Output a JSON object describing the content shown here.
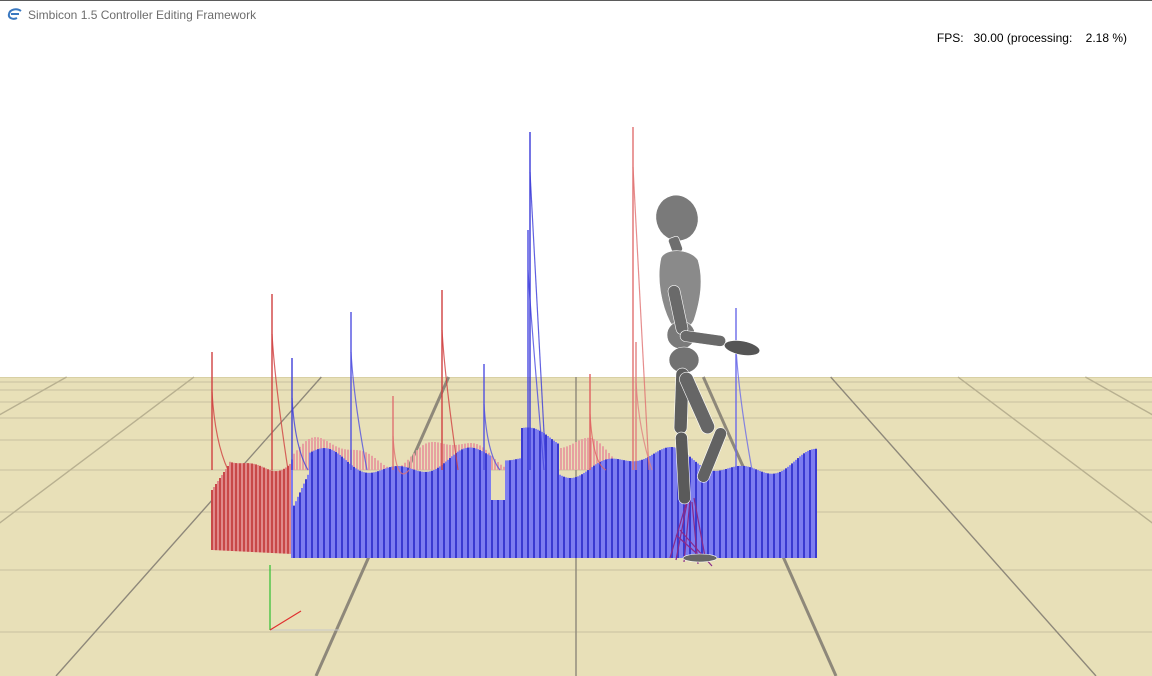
{
  "window": {
    "title": "Simbicon 1.5 Controller Editing Framework",
    "icon": "simbicon-app-icon"
  },
  "hud": {
    "fps_label": "FPS:",
    "fps_value": "30.00",
    "processing_label": "(processing:",
    "processing_value": "2.18 %)"
  },
  "scene": {
    "sky_color": "#ffffff",
    "ground_color": "#e8e0b8",
    "grid_color": "#a59e86",
    "red_series_color": "#d05050",
    "blue_series_color": "#4b4be0",
    "character": "walking-biped"
  }
}
